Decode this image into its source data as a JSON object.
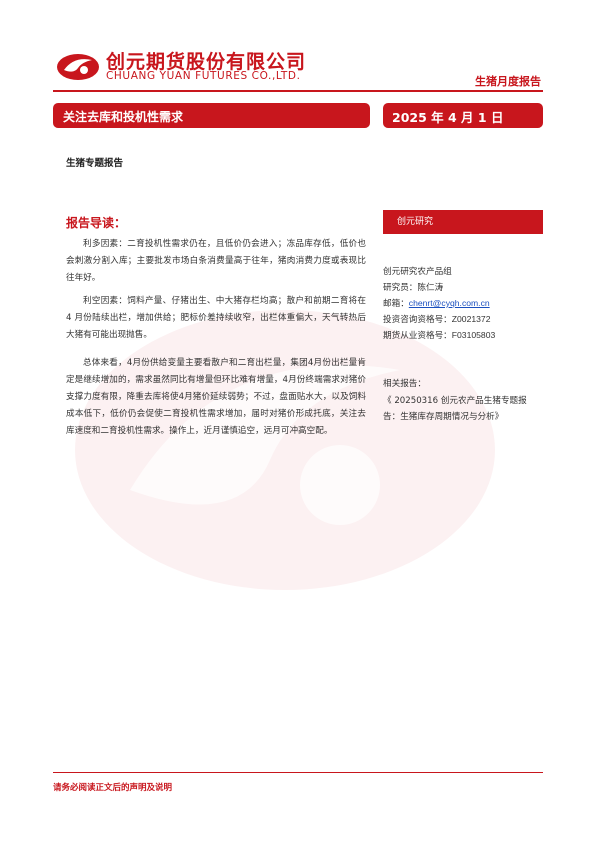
{
  "header": {
    "company_cn": "创元期货股份有限公司",
    "company_en": "CHUANG YUAN FUTURES CO.,LTD.",
    "report_type": "生猪月度报告"
  },
  "banner": {
    "title": "关注去库和投机性需求",
    "date": "2025 年 4 月 1 日"
  },
  "subtitle": "生猪专题报告",
  "guide": {
    "title": "报告导读：",
    "paragraphs": [
      "利多因素：二育投机性需求仍在，且低价仍会进入；冻品库存低，低价也会刺激分割入库；主要批发市场白条消费量高于往年，猪肉消费力度或表现比往年好。",
      "利空因素：饲料产量、仔猪出生、中大猪存栏均高；散户和前期二育将在 4 月份陆续出栏，增加供给；肥标价差持续收窄，出栏体重偏大，天气转热后大猪有可能出现抛售。",
      "总体来看，4月份供给变量主要看散户和二育出栏量，集团4月份出栏量肯定是继续增加的，需求虽然同比有增量但环比难有增量，4月份终端需求对猪价支撑力度有限，降重去库将使4月猪价延续弱势；不过，盘面贴水大，以及饲料成本低下，低价仍会促使二育投机性需求增加，届时对猪价形成托底，关注去库速度和二育投机性需求。操作上，近月谨慎追空，远月可冲高空配。"
    ]
  },
  "sidebar": {
    "header": "创元研究",
    "group": "创元研究农产品组",
    "researcher_label": "研究员：",
    "researcher": "陈仁涛",
    "email_label": "邮箱：",
    "email": "chenrt@cyqh.com.cn",
    "advisor_label": "投资咨询资格号：",
    "advisor_no": "Z0021372",
    "futures_label": "期货从业资格号：",
    "futures_no": "F03105803",
    "related_title": "相关报告：",
    "related_item": "《 20250316 创元农产品生猪专题报告：生猪库存周期情况与分析》"
  },
  "footer": {
    "disclaimer": "请务必阅读正文后的声明及说明"
  },
  "colors": {
    "brand_red": "#c8161d",
    "link_blue": "#1a4fbf"
  }
}
